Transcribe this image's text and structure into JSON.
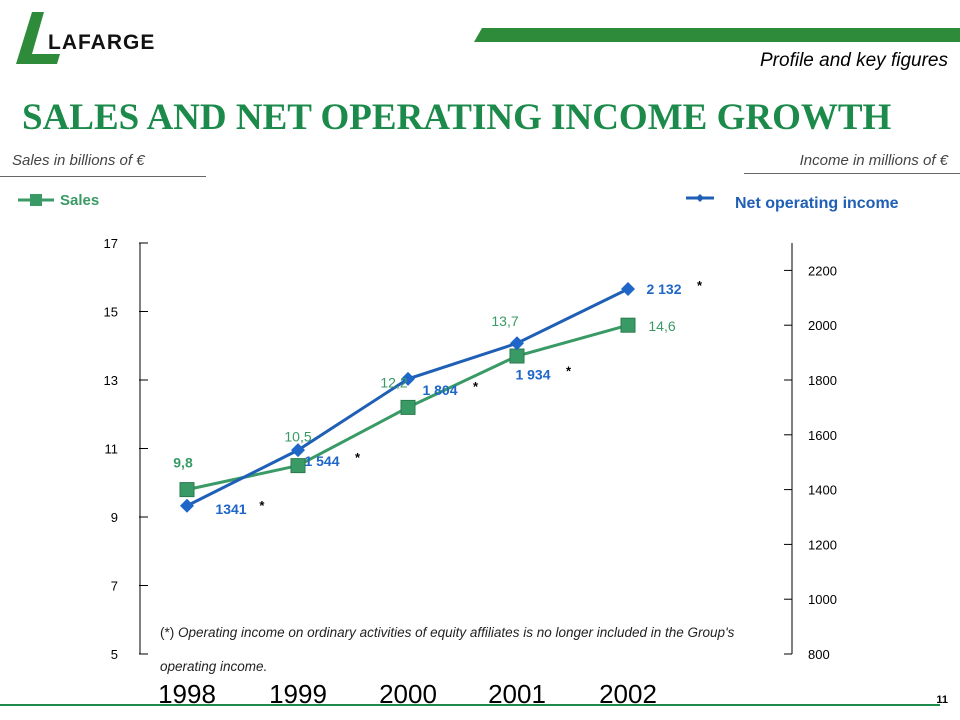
{
  "header": {
    "logo_text": "LAFARGE",
    "section": "Profile and key figures",
    "title": "SALES AND NET OPERATING INCOME GROWTH",
    "left_unit": "Sales in billions of €",
    "right_unit": "Income in millions of €"
  },
  "footer": {
    "footnote_marker": "(*)",
    "footnote": "Operating income on ordinary activities of equity affiliates is no longer included in the Group's operating income.",
    "page_number": "11"
  },
  "colors": {
    "brand_green": "#1b8a4a",
    "sales_green": "#3a9a66",
    "income_blue": "#1f5fb5",
    "income_marker": "#1e66c8",
    "bar_green": "#2e8b3a"
  },
  "chart_data": {
    "type": "line",
    "categories": [
      "1998",
      "1999",
      "2000",
      "2001",
      "2002"
    ],
    "series": [
      {
        "name": "Sales",
        "axis": "left",
        "marker": "square",
        "values": [
          9.8,
          10.5,
          12.2,
          13.7,
          14.6
        ],
        "labels": [
          "9,8",
          "10,5",
          "12,2",
          "13,7",
          "14,6"
        ]
      },
      {
        "name": "Net operating income",
        "axis": "right",
        "marker": "diamond",
        "values": [
          1341,
          1544,
          1804,
          1934,
          2132
        ],
        "labels": [
          "1341",
          "1 544",
          "1 804",
          "1 934",
          "2 132"
        ],
        "label_suffix": "*"
      }
    ],
    "left_axis": {
      "ylim": [
        5,
        17
      ],
      "ticks": [
        "5",
        "7",
        "9",
        "11",
        "13",
        "15",
        "17"
      ]
    },
    "right_axis": {
      "ylim": [
        800,
        2300
      ],
      "ticks": [
        "800",
        "1000",
        "1200",
        "1400",
        "1600",
        "1800",
        "2000",
        "2200"
      ]
    },
    "legend": [
      "Sales",
      "Net operating income"
    ],
    "grid": false
  }
}
